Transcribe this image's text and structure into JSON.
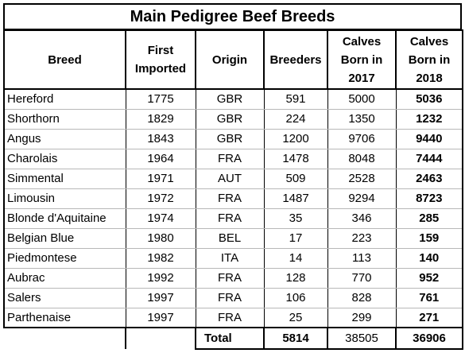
{
  "title": "Main Pedigree Beef Breeds",
  "headers": {
    "breed": [
      "Breed"
    ],
    "first_imported": [
      "First",
      "Imported"
    ],
    "origin": [
      "Origin"
    ],
    "breeders": [
      "Breeders"
    ],
    "calves_2017": [
      "Calves",
      "Born in",
      "2017"
    ],
    "calves_2018": [
      "Calves",
      "Born in",
      "2018"
    ]
  },
  "rows": [
    {
      "breed": "Hereford",
      "first_imported": "1775",
      "origin": "GBR",
      "breeders": "591",
      "calves_2017": "5000",
      "calves_2018": "5036"
    },
    {
      "breed": "Shorthorn",
      "first_imported": "1829",
      "origin": "GBR",
      "breeders": "224",
      "calves_2017": "1350",
      "calves_2018": "1232"
    },
    {
      "breed": "Angus",
      "first_imported": "1843",
      "origin": "GBR",
      "breeders": "1200",
      "calves_2017": "9706",
      "calves_2018": "9440"
    },
    {
      "breed": "Charolais",
      "first_imported": "1964",
      "origin": "FRA",
      "breeders": "1478",
      "calves_2017": "8048",
      "calves_2018": "7444"
    },
    {
      "breed": "Simmental",
      "first_imported": "1971",
      "origin": "AUT",
      "breeders": "509",
      "calves_2017": "2528",
      "calves_2018": "2463"
    },
    {
      "breed": "Limousin",
      "first_imported": "1972",
      "origin": "FRA",
      "breeders": "1487",
      "calves_2017": "9294",
      "calves_2018": "8723"
    },
    {
      "breed": "Blonde d'Aquitaine",
      "first_imported": "1974",
      "origin": "FRA",
      "breeders": "35",
      "calves_2017": "346",
      "calves_2018": "285"
    },
    {
      "breed": "Belgian Blue",
      "first_imported": "1980",
      "origin": "BEL",
      "breeders": "17",
      "calves_2017": "223",
      "calves_2018": "159"
    },
    {
      "breed": "Piedmontese",
      "first_imported": "1982",
      "origin": "ITA",
      "breeders": "14",
      "calves_2017": "113",
      "calves_2018": "140"
    },
    {
      "breed": "Aubrac",
      "first_imported": "1992",
      "origin": "FRA",
      "breeders": "128",
      "calves_2017": "770",
      "calves_2018": "952"
    },
    {
      "breed": "Salers",
      "first_imported": "1997",
      "origin": "FRA",
      "breeders": "106",
      "calves_2017": "828",
      "calves_2018": "761"
    },
    {
      "breed": "Parthenaise",
      "first_imported": "1997",
      "origin": "FRA",
      "breeders": "25",
      "calves_2017": "299",
      "calves_2018": "271"
    }
  ],
  "total": {
    "label": "Total",
    "breeders": "5814",
    "calves_2017": "38505",
    "calves_2018": "36906"
  }
}
